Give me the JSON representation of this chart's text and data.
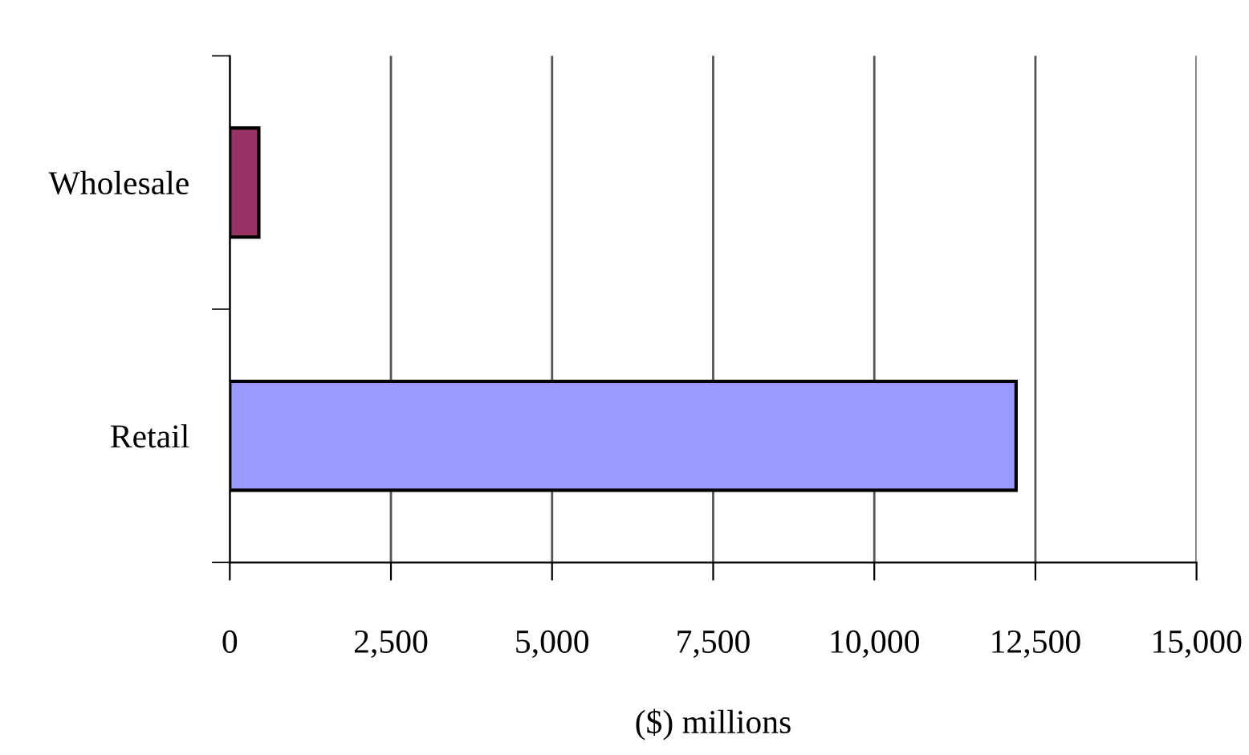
{
  "chart_data": {
    "type": "bar",
    "orientation": "horizontal",
    "categories": [
      "Wholesale",
      "Retail"
    ],
    "values": [
      450,
      12200
    ],
    "colors": [
      "#993366",
      "#9999ff"
    ],
    "xlim": [
      0,
      15000
    ],
    "xticks": [
      {
        "value": 0,
        "label": "0"
      },
      {
        "value": 2500,
        "label": "2,500"
      },
      {
        "value": 5000,
        "label": "5,000"
      },
      {
        "value": 7500,
        "label": "7,500"
      },
      {
        "value": 10000,
        "label": "10,000"
      },
      {
        "value": 12500,
        "label": "12,500"
      },
      {
        "value": 15000,
        "label": "15,000"
      }
    ],
    "xlabel": "($) millions",
    "grid": "x",
    "legend": false
  }
}
